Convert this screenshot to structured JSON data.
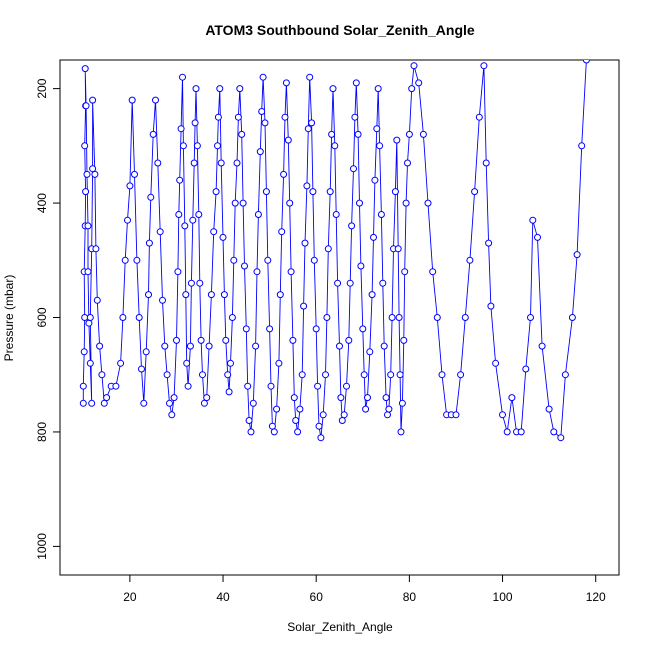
{
  "chart_data": {
    "type": "line",
    "title": "ATOM3 Southbound Solar_Zenith_Angle",
    "xlabel": "Solar_Zenith_Angle",
    "ylabel": "Pressure (mbar)",
    "xlim": [
      5,
      125
    ],
    "ylim": [
      1050,
      150
    ],
    "y_reversed": true,
    "x_ticks": [
      20,
      40,
      60,
      80,
      100,
      120
    ],
    "y_ticks": [
      200,
      400,
      600,
      800,
      1000
    ],
    "grid": false,
    "legend": "none",
    "color": "#0000ff",
    "markers": "open-circle",
    "series": [
      {
        "values": [
          [
            10,
            750
          ],
          [
            10,
            720
          ],
          [
            10.2,
            660
          ],
          [
            10.3,
            600
          ],
          [
            10.2,
            520
          ],
          [
            10.4,
            440
          ],
          [
            10.5,
            380
          ],
          [
            10.3,
            300
          ],
          [
            10.5,
            230
          ],
          [
            10.4,
            165
          ],
          [
            10.6,
            230
          ],
          [
            10.8,
            350
          ],
          [
            11,
            440
          ],
          [
            11,
            520
          ],
          [
            11.2,
            610
          ],
          [
            11.5,
            680
          ],
          [
            11.8,
            750
          ],
          [
            11.5,
            600
          ],
          [
            11.8,
            480
          ],
          [
            12,
            340
          ],
          [
            12,
            220
          ],
          [
            12.5,
            350
          ],
          [
            12.7,
            480
          ],
          [
            13,
            570
          ],
          [
            13.5,
            650
          ],
          [
            14,
            700
          ],
          [
            14.5,
            750
          ],
          [
            15,
            740
          ],
          [
            16,
            720
          ],
          [
            17,
            720
          ],
          [
            18,
            680
          ],
          [
            18.5,
            600
          ],
          [
            19,
            500
          ],
          [
            19.5,
            430
          ],
          [
            20,
            370
          ],
          [
            20.5,
            220
          ],
          [
            21,
            350
          ],
          [
            21.5,
            500
          ],
          [
            22,
            600
          ],
          [
            22.5,
            690
          ],
          [
            23,
            750
          ],
          [
            23.5,
            660
          ],
          [
            24,
            560
          ],
          [
            24.2,
            470
          ],
          [
            24.5,
            390
          ],
          [
            25,
            280
          ],
          [
            25.5,
            220
          ],
          [
            26,
            330
          ],
          [
            26.5,
            450
          ],
          [
            27,
            570
          ],
          [
            27.5,
            650
          ],
          [
            28,
            700
          ],
          [
            28.5,
            750
          ],
          [
            29,
            770
          ],
          [
            29.5,
            740
          ],
          [
            30,
            640
          ],
          [
            30.3,
            520
          ],
          [
            30.5,
            420
          ],
          [
            30.7,
            360
          ],
          [
            31,
            270
          ],
          [
            31.3,
            180
          ],
          [
            31.5,
            300
          ],
          [
            31.8,
            440
          ],
          [
            32,
            560
          ],
          [
            32.2,
            680
          ],
          [
            32.5,
            720
          ],
          [
            33,
            650
          ],
          [
            33.2,
            540
          ],
          [
            33.5,
            430
          ],
          [
            33.8,
            330
          ],
          [
            34,
            260
          ],
          [
            34.2,
            200
          ],
          [
            34.5,
            300
          ],
          [
            34.8,
            420
          ],
          [
            35,
            540
          ],
          [
            35.3,
            640
          ],
          [
            35.6,
            700
          ],
          [
            36,
            750
          ],
          [
            36.5,
            740
          ],
          [
            37,
            650
          ],
          [
            37.5,
            560
          ],
          [
            38,
            450
          ],
          [
            38.5,
            380
          ],
          [
            38.8,
            300
          ],
          [
            39,
            250
          ],
          [
            39.3,
            200
          ],
          [
            39.6,
            330
          ],
          [
            40,
            460
          ],
          [
            40.3,
            560
          ],
          [
            40.6,
            640
          ],
          [
            41,
            700
          ],
          [
            41.3,
            730
          ],
          [
            41.6,
            680
          ],
          [
            42,
            600
          ],
          [
            42.3,
            500
          ],
          [
            42.6,
            400
          ],
          [
            43,
            330
          ],
          [
            43.3,
            250
          ],
          [
            43.6,
            200
          ],
          [
            44,
            280
          ],
          [
            44.3,
            400
          ],
          [
            44.6,
            510
          ],
          [
            45,
            620
          ],
          [
            45.3,
            720
          ],
          [
            45.6,
            780
          ],
          [
            46,
            800
          ],
          [
            46.5,
            750
          ],
          [
            47,
            650
          ],
          [
            47.3,
            520
          ],
          [
            47.6,
            420
          ],
          [
            48,
            310
          ],
          [
            48.3,
            240
          ],
          [
            48.6,
            180
          ],
          [
            49,
            260
          ],
          [
            49.3,
            380
          ],
          [
            49.6,
            500
          ],
          [
            50,
            620
          ],
          [
            50.3,
            720
          ],
          [
            50.6,
            790
          ],
          [
            51,
            800
          ],
          [
            51.5,
            760
          ],
          [
            52,
            680
          ],
          [
            52.3,
            560
          ],
          [
            52.6,
            450
          ],
          [
            53,
            350
          ],
          [
            53.3,
            250
          ],
          [
            53.6,
            190
          ],
          [
            54,
            290
          ],
          [
            54.3,
            400
          ],
          [
            54.6,
            520
          ],
          [
            55,
            640
          ],
          [
            55.3,
            740
          ],
          [
            55.6,
            780
          ],
          [
            56,
            800
          ],
          [
            56.5,
            760
          ],
          [
            57,
            700
          ],
          [
            57.3,
            580
          ],
          [
            57.6,
            470
          ],
          [
            58,
            370
          ],
          [
            58.3,
            270
          ],
          [
            58.6,
            180
          ],
          [
            59,
            260
          ],
          [
            59.3,
            380
          ],
          [
            59.6,
            500
          ],
          [
            60,
            620
          ],
          [
            60.3,
            720
          ],
          [
            60.6,
            790
          ],
          [
            61,
            810
          ],
          [
            61.5,
            770
          ],
          [
            62,
            700
          ],
          [
            62.3,
            600
          ],
          [
            62.6,
            480
          ],
          [
            63,
            380
          ],
          [
            63.3,
            280
          ],
          [
            63.6,
            200
          ],
          [
            64,
            300
          ],
          [
            64.3,
            420
          ],
          [
            64.6,
            540
          ],
          [
            65,
            650
          ],
          [
            65.3,
            740
          ],
          [
            65.6,
            780
          ],
          [
            66,
            770
          ],
          [
            66.5,
            720
          ],
          [
            67,
            640
          ],
          [
            67.3,
            540
          ],
          [
            67.6,
            440
          ],
          [
            68,
            340
          ],
          [
            68.3,
            250
          ],
          [
            68.6,
            190
          ],
          [
            69,
            280
          ],
          [
            69.3,
            400
          ],
          [
            69.6,
            510
          ],
          [
            70,
            620
          ],
          [
            70.3,
            700
          ],
          [
            70.6,
            760
          ],
          [
            71,
            740
          ],
          [
            71.5,
            660
          ],
          [
            72,
            560
          ],
          [
            72.3,
            460
          ],
          [
            72.6,
            360
          ],
          [
            73,
            270
          ],
          [
            73.3,
            200
          ],
          [
            73.6,
            300
          ],
          [
            74,
            420
          ],
          [
            74.3,
            540
          ],
          [
            74.6,
            650
          ],
          [
            75,
            740
          ],
          [
            75.3,
            770
          ],
          [
            75.6,
            760
          ],
          [
            76,
            700
          ],
          [
            76.3,
            600
          ],
          [
            76.6,
            480
          ],
          [
            77,
            380
          ],
          [
            77.3,
            290
          ],
          [
            77.6,
            480
          ],
          [
            77.8,
            600
          ],
          [
            78,
            700
          ],
          [
            78.2,
            800
          ],
          [
            78.5,
            750
          ],
          [
            78.8,
            640
          ],
          [
            79,
            520
          ],
          [
            79.3,
            400
          ],
          [
            79.6,
            330
          ],
          [
            80,
            280
          ],
          [
            80.5,
            200
          ],
          [
            81,
            160
          ],
          [
            82,
            190
          ],
          [
            83,
            280
          ],
          [
            84,
            400
          ],
          [
            85,
            520
          ],
          [
            86,
            600
          ],
          [
            87,
            700
          ],
          [
            88,
            770
          ],
          [
            89,
            770
          ],
          [
            90,
            770
          ],
          [
            91,
            700
          ],
          [
            92,
            600
          ],
          [
            93,
            500
          ],
          [
            94,
            380
          ],
          [
            95,
            250
          ],
          [
            96,
            160
          ],
          [
            96.5,
            330
          ],
          [
            97,
            470
          ],
          [
            97.5,
            580
          ],
          [
            98.5,
            680
          ],
          [
            100,
            770
          ],
          [
            101,
            800
          ],
          [
            102,
            740
          ],
          [
            103,
            800
          ],
          [
            104,
            800
          ],
          [
            105,
            690
          ],
          [
            106,
            600
          ],
          [
            106.5,
            430
          ],
          [
            107.5,
            460
          ],
          [
            108.5,
            650
          ],
          [
            110,
            760
          ],
          [
            111,
            800
          ],
          [
            112.5,
            810
          ],
          [
            113.5,
            700
          ],
          [
            115,
            600
          ],
          [
            116,
            490
          ],
          [
            117,
            300
          ],
          [
            118,
            150
          ]
        ]
      }
    ]
  }
}
